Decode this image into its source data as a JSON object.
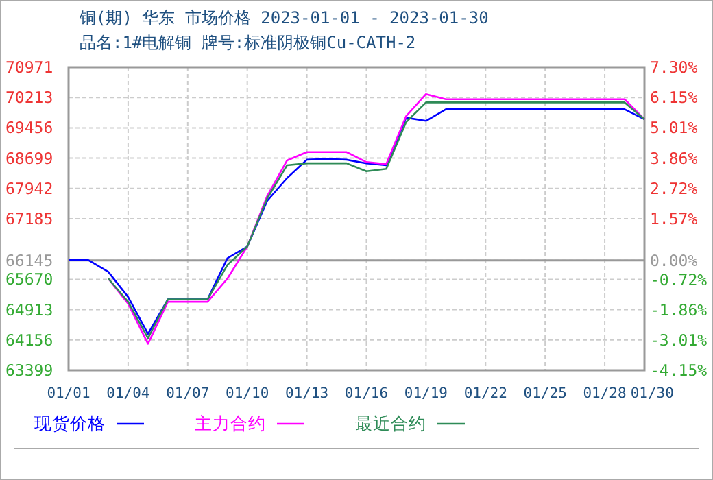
{
  "chart_data": {
    "type": "line",
    "title": "铜(期) 华东 市场价格 2023-01-01 - 2023-01-30",
    "subtitle": "品名:1#电解铜 牌号:标准阴极铜Cu-CATH-2",
    "x": [
      "--01-01",
      "--01-02",
      "--01-03",
      "--01-04",
      "--01-05",
      "--01-06",
      "--01-07",
      "--01-08",
      "--01-09",
      "--01-10",
      "--01-11",
      "--01-12",
      "--01-13",
      "--01-14",
      "--01-15",
      "--01-16",
      "--01-17",
      "--01-18",
      "--01-19",
      "--01-20",
      "--01-21",
      "--01-22",
      "--01-23",
      "--01-24",
      "--01-25",
      "--01-26",
      "--01-27",
      "--01-28",
      "--01-29",
      "--01-30"
    ],
    "series": [
      {
        "name": "现货价格",
        "color": "#0000ff",
        "values": [
          66150,
          66150,
          65860,
          65230,
          64310,
          65170,
          65170,
          65170,
          66200,
          66490,
          67630,
          68200,
          68660,
          68680,
          68660,
          68570,
          68520,
          69710,
          69630,
          69920,
          69920,
          69920,
          69920,
          69920,
          69920,
          69920,
          69920,
          69920,
          69920,
          69670
        ]
      },
      {
        "name": "主力合约",
        "color": "#ff00ff",
        "values": [
          null,
          null,
          65690,
          65060,
          64060,
          65110,
          65110,
          65110,
          65690,
          66490,
          67750,
          68640,
          68850,
          68850,
          68850,
          68600,
          68550,
          69750,
          70300,
          70170,
          70170,
          70170,
          70170,
          70170,
          70170,
          70170,
          70170,
          70170,
          70170,
          69670
        ]
      },
      {
        "name": "最近合约",
        "color": "#2e8b57",
        "values": [
          null,
          null,
          65690,
          65110,
          64200,
          65170,
          65170,
          65170,
          66030,
          66490,
          67690,
          68520,
          68570,
          68570,
          68570,
          68370,
          68430,
          69600,
          70090,
          70090,
          70090,
          70090,
          70090,
          70090,
          70090,
          70090,
          70090,
          70090,
          70090,
          69670
        ]
      }
    ],
    "xlim": [
      "--01-01",
      "--01-30"
    ],
    "xticks": [
      {
        "value": "--01-01",
        "label": "01/01"
      },
      {
        "value": "--01-04",
        "label": "01/04"
      },
      {
        "value": "--01-07",
        "label": "01/07"
      },
      {
        "value": "--01-10",
        "label": "01/10"
      },
      {
        "value": "--01-13",
        "label": "01/13"
      },
      {
        "value": "--01-16",
        "label": "01/16"
      },
      {
        "value": "--01-19",
        "label": "01/19"
      },
      {
        "value": "--01-22",
        "label": "01/22"
      },
      {
        "value": "--01-25",
        "label": "01/25"
      },
      {
        "value": "--01-28",
        "label": "01/28"
      },
      {
        "value": "--01-30",
        "label": "01/30"
      }
    ],
    "ylim": [
      63399,
      70971
    ],
    "yticks": [
      63399,
      64156,
      64913,
      65670,
      66145,
      67185,
      67942,
      68699,
      69456,
      70213,
      70971
    ],
    "y2lim": [
      -4.15,
      7.3
    ],
    "y2ticks": [
      {
        "value": -4.15,
        "label": "-4.15%"
      },
      {
        "value": -3.01,
        "label": "-3.01%"
      },
      {
        "value": -1.86,
        "label": "-1.86%"
      },
      {
        "value": -0.72,
        "label": "-0.72%"
      },
      {
        "value": 0,
        "label": "0.00%"
      },
      {
        "value": 1.57,
        "label": "1.57%"
      },
      {
        "value": 2.72,
        "label": "2.72%"
      },
      {
        "value": 3.86,
        "label": "3.86%"
      },
      {
        "value": 5.01,
        "label": "5.01%"
      },
      {
        "value": 6.15,
        "label": "6.15%"
      },
      {
        "value": 7.3,
        "label": "7.30%"
      }
    ],
    "ref_lines": [
      {
        "axis": "y",
        "value": 66145,
        "color": "#999999",
        "line_style": "solid"
      }
    ],
    "grid": true,
    "legend": "bottom",
    "marker": "none",
    "line_style": "solid"
  }
}
